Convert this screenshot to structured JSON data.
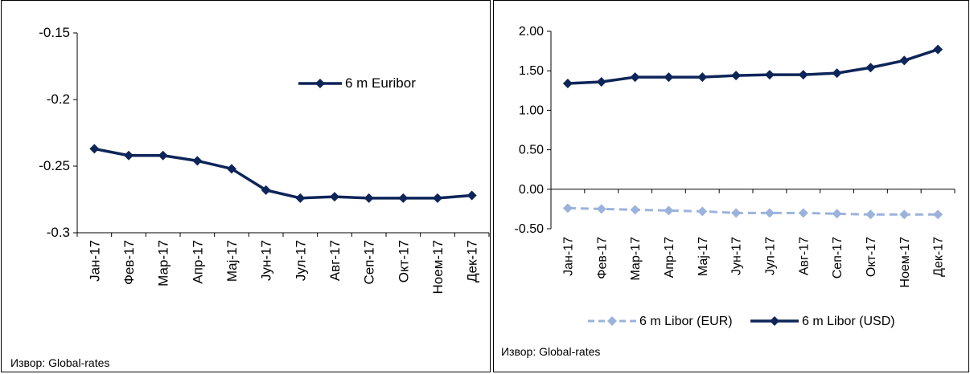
{
  "chart_data": [
    {
      "type": "line",
      "categories": [
        "Јан-17",
        "Фев-17",
        "Мар-17",
        "Апр-17",
        "Мај-17",
        "Јун-17",
        "Јул-17",
        "Авг-17",
        "Сеп-17",
        "Окт-17",
        "Ноем-17",
        "Дек-17"
      ],
      "y_ticks": [
        "-0.15",
        "-0.2",
        "-0.25",
        "-0.3"
      ],
      "ylim": [
        -0.3,
        -0.15
      ],
      "series": [
        {
          "name": "6 m Euribor",
          "color": "#0d2559",
          "marker": "diamond",
          "dashed": false,
          "values": [
            -0.237,
            -0.242,
            -0.242,
            -0.246,
            -0.252,
            -0.268,
            -0.274,
            -0.273,
            -0.274,
            -0.274,
            -0.274,
            -0.272
          ]
        }
      ],
      "legend": "top-right",
      "source": "Извор: Global-rates"
    },
    {
      "type": "line",
      "categories": [
        "Јан-17",
        "Фев-17",
        "Мар-17",
        "Апр-17",
        "Мај-17",
        "Јун-17",
        "Јул-17",
        "Авг-17",
        "Сеп-17",
        "Окт-17",
        "Ноем-17",
        "Дек-17"
      ],
      "y_ticks": [
        "2.00",
        "1.50",
        "1.00",
        "0.50",
        "0.00",
        "-0.50"
      ],
      "ylim": [
        -0.5,
        2.0
      ],
      "series": [
        {
          "name": "6 m Libor (EUR)",
          "color": "#9bb3dc",
          "marker": "diamond",
          "dashed": true,
          "values": [
            -0.24,
            -0.25,
            -0.26,
            -0.27,
            -0.28,
            -0.3,
            -0.3,
            -0.3,
            -0.31,
            -0.32,
            -0.32,
            -0.32
          ]
        },
        {
          "name": "6 m Libor (USD)",
          "color": "#0d2559",
          "marker": "diamond",
          "dashed": false,
          "values": [
            1.34,
            1.36,
            1.42,
            1.42,
            1.42,
            1.44,
            1.45,
            1.45,
            1.47,
            1.54,
            1.63,
            1.77
          ]
        }
      ],
      "legend": "bottom",
      "source": "Извор: Global-rates"
    }
  ]
}
